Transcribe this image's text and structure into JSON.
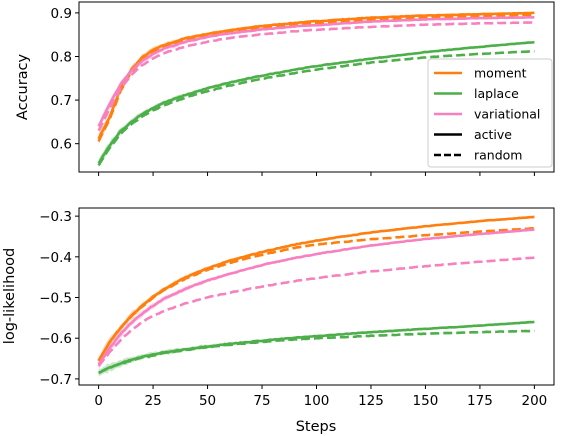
{
  "colors": {
    "moment": "#ff7f0e",
    "laplace": "#4daf4a",
    "variational": "#f781bf",
    "axis": "#000000",
    "legend_border": "#cccccc"
  },
  "xlabel": "Steps",
  "x_ticks": [
    0,
    25,
    50,
    75,
    100,
    125,
    150,
    175,
    200
  ],
  "x_tick_labels": [
    "0",
    "25",
    "50",
    "75",
    "100",
    "125",
    "150",
    "175",
    "200"
  ],
  "legend": {
    "placement": "right",
    "entries": [
      {
        "label": "moment",
        "color_key": "moment",
        "style": "solid"
      },
      {
        "label": "laplace",
        "color_key": "laplace",
        "style": "solid"
      },
      {
        "label": "variational",
        "color_key": "variational",
        "style": "solid"
      },
      {
        "label": "active",
        "color_key": "axis",
        "style": "solid"
      },
      {
        "label": "random",
        "color_key": "axis",
        "style": "dashed"
      }
    ]
  },
  "chart_data": [
    {
      "type": "line",
      "ylabel": "Accuracy",
      "xlim": [
        -9,
        209
      ],
      "ylim": [
        0.535,
        0.925
      ],
      "y_ticks": [
        0.6,
        0.7,
        0.8,
        0.9
      ],
      "y_tick_labels": [
        "0.6",
        "0.7",
        "0.8",
        "0.9"
      ],
      "show_x_tick_labels": false,
      "x": [
        0,
        5,
        10,
        15,
        20,
        25,
        30,
        40,
        50,
        60,
        75,
        90,
        100,
        125,
        150,
        175,
        200
      ],
      "series": [
        {
          "name": "moment",
          "style": "solid",
          "band": true,
          "values": [
            0.612,
            0.66,
            0.725,
            0.77,
            0.798,
            0.815,
            0.826,
            0.842,
            0.852,
            0.86,
            0.87,
            0.877,
            0.881,
            0.889,
            0.894,
            0.897,
            0.9
          ]
        },
        {
          "name": "moment",
          "style": "dashed",
          "band": false,
          "values": [
            0.605,
            0.655,
            0.72,
            0.765,
            0.792,
            0.81,
            0.822,
            0.838,
            0.848,
            0.856,
            0.866,
            0.873,
            0.877,
            0.885,
            0.89,
            0.893,
            0.896
          ]
        },
        {
          "name": "variational",
          "style": "solid",
          "band": true,
          "values": [
            0.64,
            0.69,
            0.735,
            0.768,
            0.79,
            0.806,
            0.818,
            0.834,
            0.845,
            0.853,
            0.862,
            0.869,
            0.872,
            0.88,
            0.885,
            0.888,
            0.89
          ]
        },
        {
          "name": "variational",
          "style": "dashed",
          "band": false,
          "values": [
            0.63,
            0.68,
            0.725,
            0.758,
            0.78,
            0.796,
            0.808,
            0.823,
            0.834,
            0.842,
            0.851,
            0.858,
            0.861,
            0.868,
            0.873,
            0.876,
            0.878
          ]
        },
        {
          "name": "laplace",
          "style": "solid",
          "band": true,
          "values": [
            0.555,
            0.595,
            0.628,
            0.65,
            0.668,
            0.682,
            0.694,
            0.712,
            0.727,
            0.74,
            0.756,
            0.77,
            0.778,
            0.795,
            0.81,
            0.822,
            0.833
          ]
        },
        {
          "name": "laplace",
          "style": "dashed",
          "band": false,
          "values": [
            0.55,
            0.59,
            0.622,
            0.645,
            0.662,
            0.676,
            0.688,
            0.706,
            0.72,
            0.733,
            0.749,
            0.762,
            0.77,
            0.786,
            0.798,
            0.806,
            0.812
          ]
        }
      ]
    },
    {
      "type": "line",
      "ylabel": "log-likelihood",
      "xlim": [
        -9,
        209
      ],
      "ylim": [
        -0.715,
        -0.28
      ],
      "y_ticks": [
        -0.7,
        -0.6,
        -0.5,
        -0.4,
        -0.3
      ],
      "y_tick_labels": [
        "−0.7",
        "−0.6",
        "−0.5",
        "−0.4",
        "−0.3"
      ],
      "show_x_tick_labels": true,
      "x": [
        0,
        5,
        10,
        15,
        20,
        25,
        30,
        40,
        50,
        60,
        75,
        90,
        100,
        125,
        150,
        175,
        200
      ],
      "series": [
        {
          "name": "moment",
          "style": "solid",
          "band": true,
          "values": [
            -0.655,
            -0.61,
            -0.575,
            -0.545,
            -0.52,
            -0.498,
            -0.48,
            -0.45,
            -0.428,
            -0.41,
            -0.388,
            -0.37,
            -0.36,
            -0.34,
            -0.325,
            -0.312,
            -0.302
          ]
        },
        {
          "name": "moment",
          "style": "dashed",
          "band": false,
          "values": [
            -0.655,
            -0.61,
            -0.575,
            -0.546,
            -0.522,
            -0.5,
            -0.482,
            -0.453,
            -0.432,
            -0.415,
            -0.395,
            -0.378,
            -0.37,
            -0.357,
            -0.347,
            -0.338,
            -0.33
          ]
        },
        {
          "name": "variational",
          "style": "solid",
          "band": true,
          "values": [
            -0.665,
            -0.625,
            -0.59,
            -0.562,
            -0.54,
            -0.52,
            -0.503,
            -0.478,
            -0.458,
            -0.442,
            -0.42,
            -0.403,
            -0.393,
            -0.372,
            -0.356,
            -0.344,
            -0.333
          ]
        },
        {
          "name": "variational",
          "style": "dashed",
          "band": false,
          "values": [
            -0.668,
            -0.635,
            -0.605,
            -0.58,
            -0.56,
            -0.545,
            -0.533,
            -0.514,
            -0.5,
            -0.488,
            -0.473,
            -0.46,
            -0.452,
            -0.436,
            -0.423,
            -0.412,
            -0.402
          ]
        },
        {
          "name": "laplace",
          "style": "solid",
          "band": true,
          "values": [
            -0.685,
            -0.672,
            -0.662,
            -0.653,
            -0.646,
            -0.64,
            -0.635,
            -0.627,
            -0.62,
            -0.614,
            -0.606,
            -0.599,
            -0.595,
            -0.585,
            -0.577,
            -0.569,
            -0.56
          ]
        },
        {
          "name": "laplace",
          "style": "dashed",
          "band": false,
          "values": [
            -0.685,
            -0.673,
            -0.663,
            -0.655,
            -0.648,
            -0.642,
            -0.637,
            -0.629,
            -0.622,
            -0.616,
            -0.609,
            -0.603,
            -0.6,
            -0.594,
            -0.589,
            -0.585,
            -0.582
          ]
        }
      ]
    }
  ]
}
